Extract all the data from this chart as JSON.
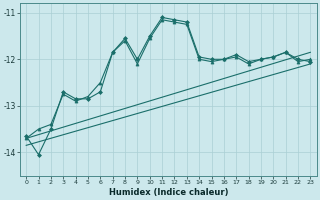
{
  "xlabel": "Humidex (Indice chaleur)",
  "background_color": "#cce8ec",
  "line_color": "#1a6e6a",
  "grid_color": "#aacfd4",
  "x_ticks": [
    0,
    1,
    2,
    3,
    4,
    5,
    6,
    7,
    8,
    9,
    10,
    11,
    12,
    13,
    14,
    15,
    16,
    17,
    18,
    19,
    20,
    21,
    22,
    23
  ],
  "ylim": [
    -14.5,
    -10.8
  ],
  "xlim": [
    -0.5,
    23.5
  ],
  "yticks": [
    -14,
    -13,
    -12,
    -11
  ],
  "line1_x": [
    0,
    23
  ],
  "line1_y": [
    -13.7,
    -11.85
  ],
  "line2_x": [
    0,
    23
  ],
  "line2_y": [
    -13.85,
    -12.1
  ],
  "series_marker1_x": [
    0,
    1,
    2,
    3,
    4,
    5,
    6,
    7,
    8,
    9,
    10,
    11,
    12,
    13,
    14,
    15,
    16,
    17,
    18,
    19,
    20,
    21,
    22,
    23
  ],
  "series_marker1_y": [
    -13.65,
    -14.05,
    -13.5,
    -12.7,
    -12.85,
    -12.85,
    -12.7,
    -11.85,
    -11.55,
    -12.0,
    -11.5,
    -11.1,
    -11.15,
    -11.2,
    -11.95,
    -12.0,
    -12.0,
    -11.9,
    -12.05,
    -12.0,
    -11.95,
    -11.85,
    -12.0,
    -12.05
  ],
  "series_marker2_x": [
    0,
    1,
    2,
    3,
    4,
    5,
    6,
    7,
    8,
    9,
    10,
    11,
    12,
    13,
    14,
    15,
    16,
    17,
    18,
    19,
    20,
    21,
    22,
    23
  ],
  "series_marker2_y": [
    -13.7,
    -13.5,
    -13.4,
    -12.75,
    -12.9,
    -12.8,
    -12.5,
    -11.85,
    -11.6,
    -12.1,
    -11.55,
    -11.15,
    -11.2,
    -11.25,
    -12.0,
    -12.05,
    -12.0,
    -11.95,
    -12.1,
    -12.0,
    -11.95,
    -11.85,
    -12.05,
    -12.0
  ]
}
